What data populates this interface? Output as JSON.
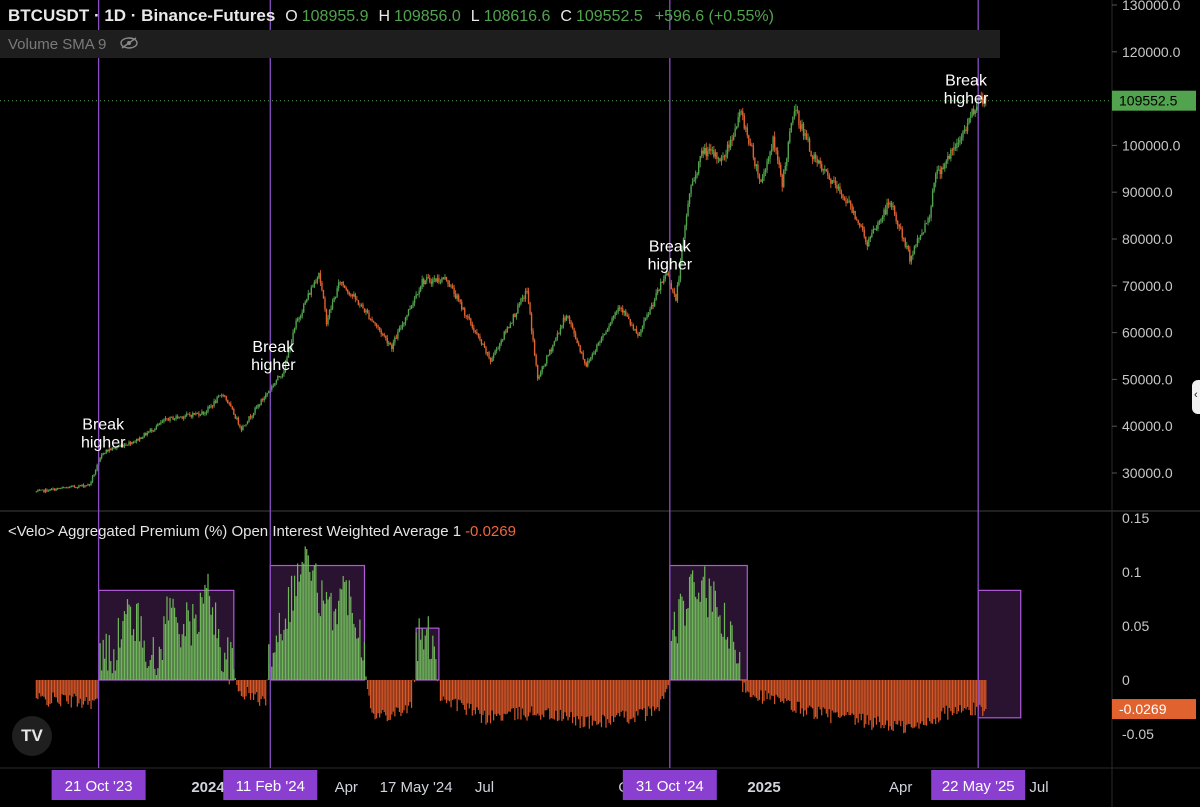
{
  "header": {
    "symbol": "BTCUSDT · 1D · Binance-Futures",
    "o_label": "O",
    "o_value": "108955.9",
    "h_label": "H",
    "h_value": "109856.0",
    "l_label": "L",
    "l_value": "108616.6",
    "c_label": "C",
    "c_value": "109552.5",
    "change": "+596.6 (+0.55%)"
  },
  "volume_label": "Volume SMA 9",
  "indicator": {
    "title": "<Velo> Aggregated Premium (%) Open Interest Weighted Average 1",
    "value": "-0.0269"
  },
  "logo_text": "TV",
  "colors": {
    "up": "#52a34e",
    "down": "#e0622f",
    "premium_pos": "#6fb85a",
    "premium_neg": "#d9582a",
    "highlight_fill": "#2a1330",
    "highlight_stroke": "#b159d8",
    "vline": "#8a4fc4",
    "price_line": "#52a34e",
    "tag_bg": "#8a3fd0"
  },
  "chart_data": [
    {
      "type": "candlestick",
      "title": "BTCUSDT · 1D · Binance-Futures",
      "y_axis_ticks": [
        "130000.0",
        "120000.0",
        "110000.0",
        "100000.0",
        "90000.0",
        "80000.0",
        "70000.0",
        "60000.0",
        "50000.0",
        "40000.0",
        "30000.0"
      ],
      "ylim": [
        22000,
        130000
      ],
      "last_price": "109552.5",
      "price_path": [
        {
          "date": "2023-09-10",
          "price": 26000
        },
        {
          "date": "2023-10-15",
          "price": 27500
        },
        {
          "date": "2023-10-24",
          "price": 34500
        },
        {
          "date": "2023-11-15",
          "price": 37000
        },
        {
          "date": "2023-12-05",
          "price": 41500
        },
        {
          "date": "2023-12-30",
          "price": 43000
        },
        {
          "date": "2024-01-11",
          "price": 47000
        },
        {
          "date": "2024-01-23",
          "price": 39500
        },
        {
          "date": "2024-02-11",
          "price": 48000
        },
        {
          "date": "2024-02-20",
          "price": 52000
        },
        {
          "date": "2024-02-28",
          "price": 62000
        },
        {
          "date": "2024-03-14",
          "price": 73000
        },
        {
          "date": "2024-03-19",
          "price": 62500
        },
        {
          "date": "2024-03-28",
          "price": 71000
        },
        {
          "date": "2024-04-15",
          "price": 64000
        },
        {
          "date": "2024-05-01",
          "price": 57000
        },
        {
          "date": "2024-05-21",
          "price": 71000
        },
        {
          "date": "2024-06-06",
          "price": 71500
        },
        {
          "date": "2024-07-05",
          "price": 54000
        },
        {
          "date": "2024-07-29",
          "price": 69000
        },
        {
          "date": "2024-08-05",
          "price": 50000
        },
        {
          "date": "2024-08-24",
          "price": 64000
        },
        {
          "date": "2024-09-06",
          "price": 53000
        },
        {
          "date": "2024-09-28",
          "price": 66000
        },
        {
          "date": "2024-10-10",
          "price": 59000
        },
        {
          "date": "2024-10-29",
          "price": 73000
        },
        {
          "date": "2024-11-04",
          "price": 67000
        },
        {
          "date": "2024-11-13",
          "price": 90000
        },
        {
          "date": "2024-11-22",
          "price": 99000
        },
        {
          "date": "2024-12-05",
          "price": 97000
        },
        {
          "date": "2024-12-17",
          "price": 107000
        },
        {
          "date": "2024-12-30",
          "price": 92000
        },
        {
          "date": "2025-01-07",
          "price": 101000
        },
        {
          "date": "2025-01-13",
          "price": 92000
        },
        {
          "date": "2025-01-21",
          "price": 108000
        },
        {
          "date": "2025-02-03",
          "price": 97000
        },
        {
          "date": "2025-02-25",
          "price": 88000
        },
        {
          "date": "2025-03-04",
          "price": 84000
        },
        {
          "date": "2025-03-10",
          "price": 79000
        },
        {
          "date": "2025-03-25",
          "price": 88000
        },
        {
          "date": "2025-04-07",
          "price": 76000
        },
        {
          "date": "2025-04-20",
          "price": 85000
        },
        {
          "date": "2025-04-23",
          "price": 93000
        },
        {
          "date": "2025-05-08",
          "price": 100000
        },
        {
          "date": "2025-05-14",
          "price": 104000
        },
        {
          "date": "2025-05-22",
          "price": 110000
        },
        {
          "date": "2025-05-27",
          "price": 109552.5
        }
      ],
      "annotations": [
        {
          "text": [
            "Break",
            "higher"
          ],
          "date": "2023-10-24",
          "price": 35500
        },
        {
          "text": [
            "Break",
            "higher"
          ],
          "date": "2024-02-13",
          "price": 52000
        },
        {
          "text": [
            "Break",
            "higher"
          ],
          "date": "2024-10-31",
          "price": 73500
        },
        {
          "text": [
            "Break",
            "higher"
          ],
          "date": "2025-05-14",
          "price": 109000
        }
      ]
    },
    {
      "type": "bar",
      "title": "<Velo> Aggregated Premium (%) Open Interest Weighted Average 1",
      "y_axis_ticks": [
        "0.15",
        "0.1",
        "0.05",
        "0",
        "-0.05"
      ],
      "ylim": [
        -0.075,
        0.15
      ],
      "last_value": "-0.0269",
      "premium_path": [
        {
          "date": "2023-09-10",
          "value": -0.018
        },
        {
          "date": "2023-10-20",
          "value": -0.02
        },
        {
          "date": "2023-10-22",
          "value": 0.02
        },
        {
          "date": "2023-11-01",
          "value": 0.03
        },
        {
          "date": "2023-11-10",
          "value": 0.065
        },
        {
          "date": "2023-11-20",
          "value": 0.04
        },
        {
          "date": "2023-11-28",
          "value": 0.01
        },
        {
          "date": "2023-12-06",
          "value": 0.07
        },
        {
          "date": "2023-12-15",
          "value": 0.05
        },
        {
          "date": "2023-12-22",
          "value": 0.05
        },
        {
          "date": "2024-01-02",
          "value": 0.085
        },
        {
          "date": "2024-01-09",
          "value": 0.03
        },
        {
          "date": "2024-01-16",
          "value": 0.015
        },
        {
          "date": "2024-01-21",
          "value": -0.01
        },
        {
          "date": "2024-02-08",
          "value": -0.02
        },
        {
          "date": "2024-02-11",
          "value": 0.03
        },
        {
          "date": "2024-02-20",
          "value": 0.06
        },
        {
          "date": "2024-03-05",
          "value": 0.115
        },
        {
          "date": "2024-03-20",
          "value": 0.06
        },
        {
          "date": "2024-04-01",
          "value": 0.085
        },
        {
          "date": "2024-04-08",
          "value": 0.06
        },
        {
          "date": "2024-04-14",
          "value": 0.02
        },
        {
          "date": "2024-04-18",
          "value": -0.035
        },
        {
          "date": "2024-05-14",
          "value": -0.025
        },
        {
          "date": "2024-05-17",
          "value": 0.035
        },
        {
          "date": "2024-05-29",
          "value": 0.04
        },
        {
          "date": "2024-06-02",
          "value": -0.015
        },
        {
          "date": "2024-07-01",
          "value": -0.035
        },
        {
          "date": "2024-08-05",
          "value": -0.03
        },
        {
          "date": "2024-09-10",
          "value": -0.04
        },
        {
          "date": "2024-10-20",
          "value": -0.03
        },
        {
          "date": "2024-10-30",
          "value": -0.01
        },
        {
          "date": "2024-11-01",
          "value": 0.04
        },
        {
          "date": "2024-11-12",
          "value": 0.075
        },
        {
          "date": "2024-11-20",
          "value": 0.09
        },
        {
          "date": "2024-12-05",
          "value": 0.055
        },
        {
          "date": "2024-12-21",
          "value": -0.01
        },
        {
          "date": "2025-01-20",
          "value": -0.025
        },
        {
          "date": "2025-02-20",
          "value": -0.035
        },
        {
          "date": "2025-03-15",
          "value": -0.04
        },
        {
          "date": "2025-04-10",
          "value": -0.045
        },
        {
          "date": "2025-05-01",
          "value": -0.03
        },
        {
          "date": "2025-05-27",
          "value": -0.0269
        }
      ],
      "highlight_boxes": [
        {
          "start": "2023-10-21",
          "end": "2024-01-18",
          "low": 0,
          "high": 0.083
        },
        {
          "start": "2024-02-11",
          "end": "2024-04-13",
          "low": 0,
          "high": 0.106
        },
        {
          "start": "2024-05-17",
          "end": "2024-06-01",
          "low": 0,
          "high": 0.048
        },
        {
          "start": "2024-10-31",
          "end": "2024-12-21",
          "low": 0,
          "high": 0.106
        },
        {
          "start": "2025-05-22",
          "end": "2025-06-19",
          "low": -0.035,
          "high": 0.083
        }
      ]
    }
  ],
  "vertical_markers": [
    "2023-10-21",
    "2024-02-11",
    "2024-10-31",
    "2025-05-22"
  ],
  "x_axis": {
    "labels": [
      {
        "text": "2024",
        "date": "2024-01-01",
        "bold": true
      },
      {
        "text": "Apr",
        "date": "2024-04-01"
      },
      {
        "text": "17 May '24",
        "date": "2024-05-17"
      },
      {
        "text": "Jul",
        "date": "2024-07-01"
      },
      {
        "text": "O",
        "date": "2024-10-01"
      },
      {
        "text": "2025",
        "date": "2025-01-01",
        "bold": true
      },
      {
        "text": "Apr",
        "date": "2025-04-01"
      },
      {
        "text": "Jul",
        "date": "2025-07-01"
      }
    ],
    "tags": [
      {
        "text": "21 Oct '23",
        "date": "2023-10-21"
      },
      {
        "text": "11 Feb '24",
        "date": "2024-02-11"
      },
      {
        "text": "31 Oct '24",
        "date": "2024-10-31"
      },
      {
        "text": "22 May '25",
        "date": "2025-05-22"
      }
    ]
  }
}
